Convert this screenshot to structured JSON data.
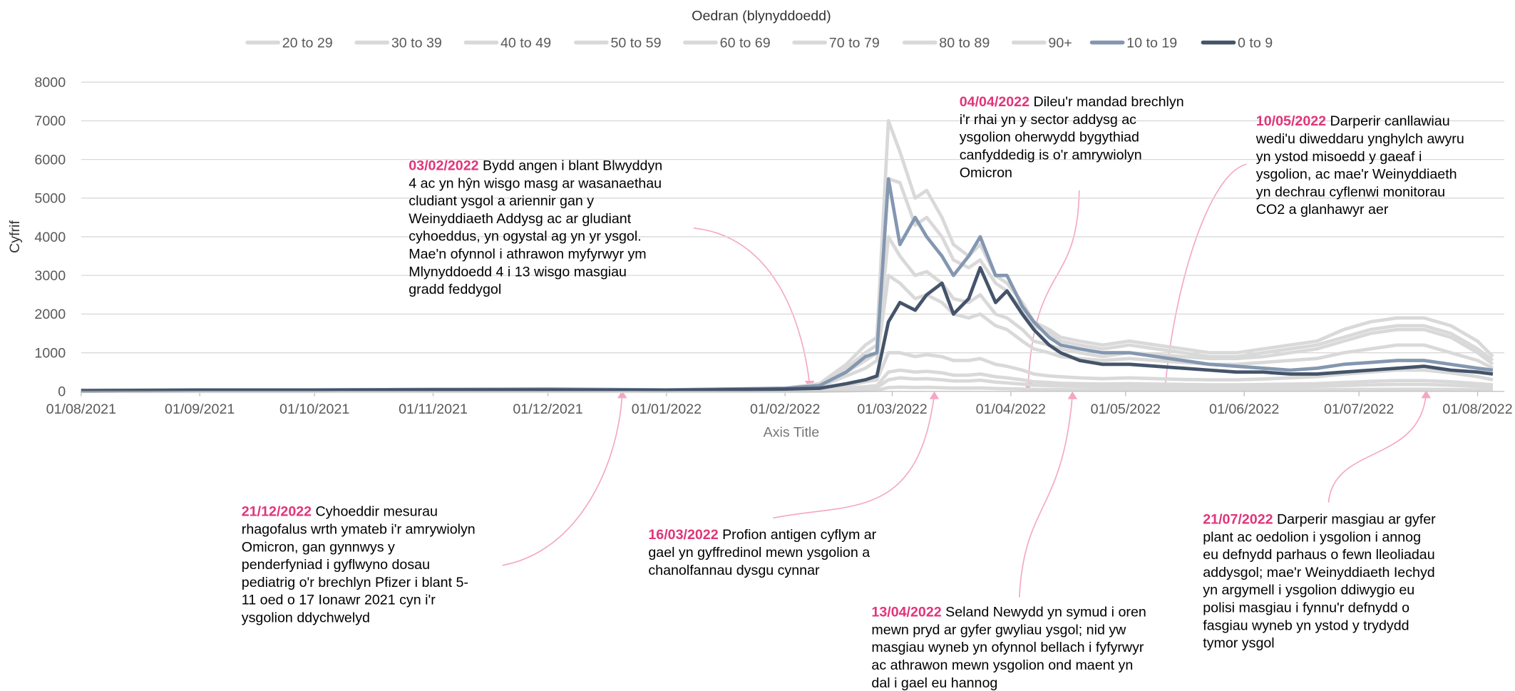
{
  "chart_data": {
    "type": "line",
    "legend_title": "Oedran (blynyddoedd)",
    "y_label": "Cyfrif",
    "x_label": "Axis Title",
    "grid": true,
    "legend": "top",
    "ylim": [
      0,
      8000
    ],
    "yticks": [
      0,
      1000,
      2000,
      3000,
      4000,
      5000,
      6000,
      7000,
      8000
    ],
    "xlim": [
      "2021-08-01",
      "2022-08-08"
    ],
    "xticks": [
      {
        "value": "2021-08-01",
        "label": "01/08/2021"
      },
      {
        "value": "2021-09-01",
        "label": "01/09/2021"
      },
      {
        "value": "2021-10-01",
        "label": "01/10/2021"
      },
      {
        "value": "2021-11-01",
        "label": "01/11/2021"
      },
      {
        "value": "2021-12-01",
        "label": "01/12/2021"
      },
      {
        "value": "2022-01-01",
        "label": "01/01/2022"
      },
      {
        "value": "2022-02-01",
        "label": "01/02/2022"
      },
      {
        "value": "2022-03-01",
        "label": "01/03/2022"
      },
      {
        "value": "2022-04-01",
        "label": "01/04/2022"
      },
      {
        "value": "2022-05-01",
        "label": "01/05/2022"
      },
      {
        "value": "2022-06-01",
        "label": "01/06/2022"
      },
      {
        "value": "2022-07-01",
        "label": "01/07/2022"
      },
      {
        "value": "2022-08-01",
        "label": "01/08/2022"
      }
    ],
    "x": [
      "2021-08-01",
      "2021-09-01",
      "2021-10-01",
      "2021-11-01",
      "2021-12-01",
      "2022-01-01",
      "2022-02-01",
      "2022-02-10",
      "2022-02-17",
      "2022-02-22",
      "2022-02-25",
      "2022-02-28",
      "2022-03-03",
      "2022-03-07",
      "2022-03-10",
      "2022-03-14",
      "2022-03-17",
      "2022-03-21",
      "2022-03-24",
      "2022-03-28",
      "2022-03-31",
      "2022-04-04",
      "2022-04-07",
      "2022-04-11",
      "2022-04-14",
      "2022-04-19",
      "2022-04-25",
      "2022-05-02",
      "2022-05-09",
      "2022-05-16",
      "2022-05-23",
      "2022-05-30",
      "2022-06-06",
      "2022-06-13",
      "2022-06-20",
      "2022-06-27",
      "2022-07-04",
      "2022-07-11",
      "2022-07-18",
      "2022-07-25",
      "2022-08-01",
      "2022-08-05"
    ],
    "series": [
      {
        "name": "20 to 29",
        "color": "#d9d9d9",
        "values": [
          20,
          30,
          30,
          40,
          40,
          30,
          60,
          150,
          500,
          800,
          1000,
          4000,
          3500,
          3000,
          3100,
          2800,
          2400,
          2300,
          2500,
          2000,
          1900,
          1600,
          1300,
          1200,
          1100,
          1000,
          900,
          1000,
          950,
          900,
          850,
          850,
          900,
          1000,
          1100,
          1300,
          1500,
          1600,
          1600,
          1400,
          1000,
          700
        ]
      },
      {
        "name": "30 to 39",
        "color": "#d9d9d9",
        "values": [
          30,
          40,
          40,
          50,
          50,
          40,
          80,
          200,
          700,
          1200,
          1400,
          7000,
          6200,
          5000,
          5200,
          4500,
          3800,
          3500,
          3800,
          3000,
          2800,
          2300,
          1800,
          1600,
          1400,
          1300,
          1200,
          1300,
          1200,
          1100,
          1000,
          1000,
          1100,
          1200,
          1300,
          1600,
          1800,
          1900,
          1900,
          1700,
          1300,
          900
        ]
      },
      {
        "name": "40 to 49",
        "color": "#d9d9d9",
        "values": [
          30,
          40,
          40,
          50,
          50,
          40,
          80,
          180,
          600,
          1000,
          1200,
          5500,
          5400,
          4300,
          4500,
          4000,
          3400,
          3200,
          3400,
          2800,
          2600,
          2100,
          1700,
          1500,
          1300,
          1200,
          1100,
          1200,
          1100,
          1000,
          900,
          900,
          1000,
          1100,
          1200,
          1400,
          1600,
          1700,
          1700,
          1500,
          1100,
          800
        ]
      },
      {
        "name": "50 to 59",
        "color": "#d9d9d9",
        "values": [
          20,
          30,
          30,
          40,
          40,
          30,
          60,
          120,
          400,
          600,
          800,
          3000,
          2800,
          2400,
          2500,
          2300,
          2000,
          1900,
          2000,
          1700,
          1600,
          1300,
          1100,
          1000,
          900,
          850,
          800,
          850,
          800,
          750,
          700,
          700,
          750,
          800,
          850,
          1000,
          1100,
          1200,
          1200,
          1000,
          800,
          600
        ]
      },
      {
        "name": "60 to 69",
        "color": "#d9d9d9",
        "values": [
          10,
          10,
          10,
          20,
          20,
          10,
          20,
          50,
          150,
          250,
          300,
          1000,
          1000,
          900,
          950,
          900,
          800,
          800,
          850,
          700,
          650,
          550,
          450,
          400,
          380,
          350,
          330,
          350,
          330,
          310,
          300,
          300,
          320,
          350,
          380,
          450,
          500,
          550,
          550,
          480,
          380,
          300
        ]
      },
      {
        "name": "70 to 79",
        "color": "#d9d9d9",
        "values": [
          5,
          5,
          5,
          10,
          10,
          5,
          10,
          30,
          80,
          120,
          150,
          500,
          550,
          500,
          520,
          480,
          420,
          420,
          450,
          380,
          350,
          300,
          250,
          230,
          210,
          200,
          190,
          200,
          190,
          180,
          170,
          170,
          180,
          190,
          200,
          230,
          260,
          280,
          280,
          250,
          200,
          170
        ]
      },
      {
        "name": "80 to 89",
        "color": "#d9d9d9",
        "values": [
          5,
          5,
          5,
          5,
          5,
          5,
          5,
          20,
          50,
          80,
          100,
          300,
          350,
          320,
          330,
          300,
          270,
          270,
          290,
          240,
          220,
          190,
          160,
          150,
          140,
          130,
          120,
          130,
          120,
          115,
          110,
          110,
          115,
          120,
          130,
          150,
          170,
          180,
          180,
          160,
          130,
          110
        ]
      },
      {
        "name": "90+",
        "color": "#d9d9d9",
        "values": [
          0,
          0,
          0,
          0,
          0,
          0,
          0,
          5,
          15,
          25,
          30,
          100,
          110,
          100,
          105,
          95,
          85,
          85,
          90,
          75,
          70,
          60,
          50,
          47,
          44,
          41,
          38,
          41,
          38,
          36,
          35,
          35,
          36,
          38,
          41,
          47,
          53,
          56,
          56,
          50,
          41,
          35
        ]
      },
      {
        "name": "10 to 19",
        "color": "#8497b0",
        "values": [
          20,
          40,
          40,
          50,
          60,
          40,
          80,
          150,
          500,
          900,
          1000,
          5500,
          3800,
          4500,
          4000,
          3500,
          3000,
          3500,
          4000,
          3000,
          3000,
          2200,
          1800,
          1400,
          1200,
          1100,
          1000,
          1000,
          900,
          800,
          700,
          650,
          600,
          550,
          600,
          700,
          750,
          800,
          800,
          700,
          600,
          550
        ]
      },
      {
        "name": "0 to 9",
        "color": "#44546a",
        "values": [
          20,
          30,
          30,
          40,
          40,
          30,
          60,
          80,
          200,
          300,
          400,
          1800,
          2300,
          2100,
          2500,
          2800,
          2000,
          2400,
          3200,
          2300,
          2600,
          2000,
          1600,
          1200,
          1000,
          800,
          700,
          700,
          650,
          600,
          550,
          500,
          500,
          450,
          450,
          500,
          550,
          600,
          650,
          550,
          500,
          450
        ]
      }
    ],
    "annotations": [
      {
        "date": "03/02/2022",
        "lines": [
          "Bydd angen i blant Blwyddyn",
          "4 ac yn hŷn wisgo masg ar wasanaethau",
          "cludiant ysgol a ariennir gan y",
          "Weinyddiaeth Addysg ac ar gludiant",
          "cyhoeddus, yn ogystal ag yn yr ysgol.",
          "Mae'n ofynnol i athrawon myfyrwyr ym",
          "Mlynyddoedd 4 i 13 wisgo masgiau",
          "gradd feddygol"
        ]
      },
      {
        "date": "04/04/2022",
        "lines": [
          "Dileu'r mandad brechlyn",
          "i'r rhai yn y sector addysg ac",
          "ysgolion oherwydd bygythiad",
          "canfyddedig is o'r amrywiolyn",
          "Omicron"
        ]
      },
      {
        "date": "10/05/2022",
        "lines": [
          "Darperir canllawiau",
          "wedi'u diweddaru ynghylch awyru",
          "yn ystod misoedd y gaeaf i",
          "ysgolion, ac mae'r Weinyddiaeth",
          "yn dechrau cyflenwi monitorau",
          "CO2 a glanhawyr aer"
        ]
      },
      {
        "date": "21/12/2022",
        "lines": [
          "Cyhoeddir mesurau",
          "rhagofalus wrth ymateb i'r amrywiolyn",
          "Omicron, gan gynnwys y",
          "penderfyniad i gyflwyno dosau",
          "pediatrig o'r brechlyn Pfizer i blant 5-",
          "11 oed o 17 Ionawr 2021 cyn i'r",
          "ysgolion ddychwelyd"
        ]
      },
      {
        "date": "16/03/2022",
        "lines": [
          "Profion antigen cyflym ar",
          "gael yn gyffredinol mewn ysgolion a",
          "chanolfannau dysgu cynnar"
        ]
      },
      {
        "date": "13/04/2022",
        "lines": [
          "Seland Newydd yn symud i oren",
          "mewn pryd ar gyfer gwyliau ysgol; nid yw",
          "masgiau wyneb yn ofynnol bellach i fyfyrwyr",
          "ac athrawon mewn ysgolion ond maent yn",
          "dal i gael eu hannog"
        ]
      },
      {
        "date": "21/07/2022",
        "lines": [
          "Darperir masgiau ar gyfer",
          "plant ac oedolion i ysgolion i annog",
          "eu defnydd parhaus o fewn lleoliadau",
          "addysgol; mae'r Weinyddiaeth Iechyd",
          "yn argymell i ysgolion ddiwygio eu",
          "polisi masgiau i fynnu'r defnydd o",
          "fasgiau wyneb yn ystod y trydydd",
          "tymor ysgol"
        ]
      }
    ]
  }
}
